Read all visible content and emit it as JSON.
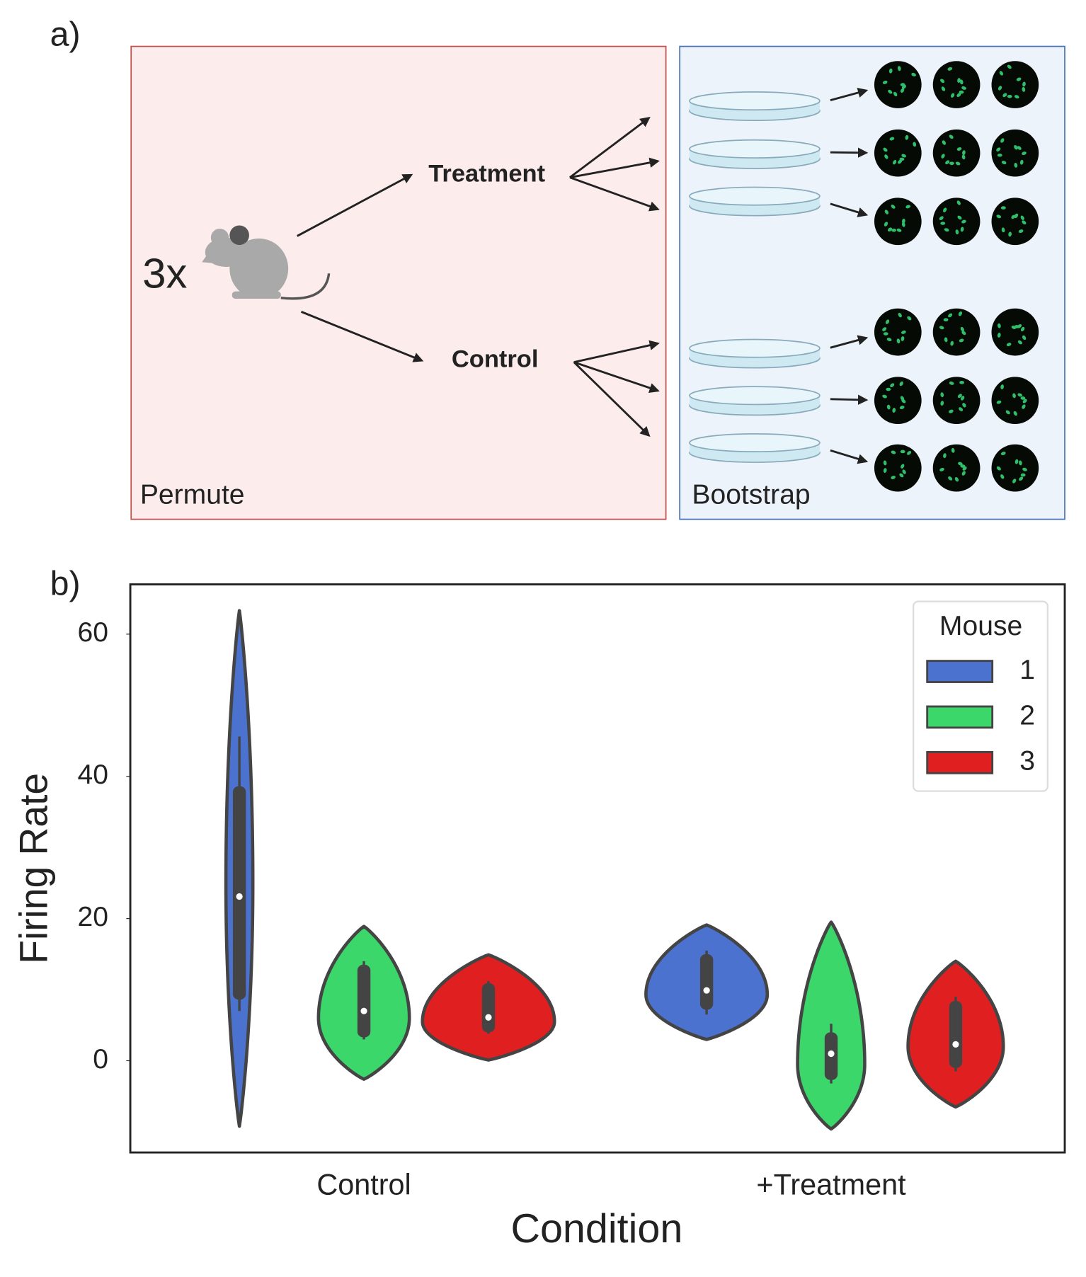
{
  "diagram": {
    "label": "a)",
    "subject": "3x",
    "groups": [
      "Treatment",
      "Control"
    ],
    "panels": [
      "Permute",
      "Bootstrap"
    ]
  },
  "chart_data": {
    "type": "violin",
    "label": "b)",
    "x_label": "Condition",
    "y_label": "Firing Rate",
    "categories": [
      "Control",
      "+Treatment"
    ],
    "legend_title": "Mouse",
    "legend": "upper right",
    "ylim": [
      -12.9,
      67
    ],
    "yticks": [
      0,
      20,
      40,
      60
    ],
    "grid": false,
    "series": [
      {
        "name": "1",
        "color": "#4c72d0",
        "values": [
          23.1,
          9.9
        ],
        "q1": [
          8.6,
          7.2
        ],
        "q3": [
          38.6,
          15.0
        ],
        "whisker_low": [
          7,
          6.5
        ],
        "whisker_high": [
          45.6,
          15.5
        ],
        "violin_low": [
          -9.2,
          3.0
        ],
        "violin_high": [
          63.3,
          19.1
        ],
        "violin_peak": [
          25,
          9.3
        ]
      },
      {
        "name": "2",
        "color": "#3bd76a",
        "values": [
          7.0,
          1.0
        ],
        "q1": [
          3.3,
          -2.7
        ],
        "q3": [
          13.5,
          4.0
        ],
        "whisker_low": [
          3,
          -3.2
        ],
        "whisker_high": [
          14,
          5.2
        ],
        "violin_low": [
          -2.6,
          -9.6
        ],
        "violin_high": [
          18.9,
          19.5
        ],
        "violin_peak": [
          6,
          -0.5
        ]
      },
      {
        "name": "3",
        "color": "#e02020",
        "values": [
          6.1,
          2.3
        ],
        "q1": [
          4.0,
          -1.0
        ],
        "q3": [
          10.9,
          8.4
        ],
        "whisker_low": [
          3.8,
          -1.5
        ],
        "whisker_high": [
          11.2,
          9.0
        ],
        "violin_low": [
          0.1,
          -6.5
        ],
        "violin_high": [
          14.9,
          14.0
        ],
        "violin_peak": [
          5.5,
          2
        ]
      }
    ]
  }
}
